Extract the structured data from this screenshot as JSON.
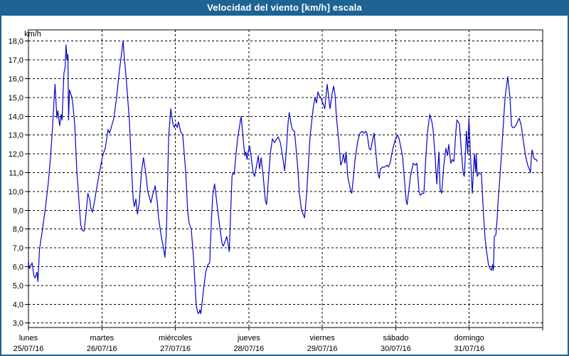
{
  "window": {
    "title": "Velocidad del viento [km/h] escala"
  },
  "colors": {
    "title_bar": "#1d6394",
    "border": "#1d6394",
    "line": "#0404c8",
    "background": "#ffffff",
    "grid": "#000000",
    "text": "#000000"
  },
  "chart_data": {
    "type": "line",
    "title": "Velocidad del viento [km/h] escala",
    "ylabel": "km/h",
    "xlabel": "",
    "ylim": [
      3,
      18
    ],
    "grid": true,
    "legend": "none",
    "ytick_values": [
      18,
      17,
      16,
      15,
      14,
      13,
      12,
      11,
      10,
      9,
      8,
      7,
      6,
      5,
      4,
      3
    ],
    "ytick_labels": [
      "18,0",
      "17,0",
      "16,0",
      "15,0",
      "14,0",
      "13,0",
      "12,0",
      "11,0",
      "10,0",
      "9,0",
      "8,0",
      "7,0",
      "6,0",
      "5,0",
      "4,0",
      "3,0"
    ],
    "days": [
      {
        "name": "lunes",
        "date": "25/07/16"
      },
      {
        "name": "martes",
        "date": "26/07/16"
      },
      {
        "name": "miércoles",
        "date": "27/07/16"
      },
      {
        "name": "jueves",
        "date": "28/07/16"
      },
      {
        "name": "viernes",
        "date": "29/07/16"
      },
      {
        "name": "sábado",
        "date": "30/07/16"
      },
      {
        "name": "domingo",
        "date": "31/07/16"
      }
    ],
    "hours_total": 168,
    "series": [
      {
        "name": "Velocidad del viento",
        "unit": "km/h",
        "x_unit": "hours since 25/07/16 00:00",
        "points": [
          [
            0,
            6.3
          ],
          [
            0.3,
            5.9
          ],
          [
            1.2,
            6.2
          ],
          [
            1.8,
            5.5
          ],
          [
            2.2,
            5.4
          ],
          [
            2.8,
            5.7
          ],
          [
            3.1,
            5.2
          ],
          [
            3.6,
            6.9
          ],
          [
            4.6,
            8.0
          ],
          [
            5.6,
            9.2
          ],
          [
            6.5,
            10.5
          ],
          [
            7.2,
            11.8
          ],
          [
            7.9,
            13.5
          ],
          [
            8.4,
            15.0
          ],
          [
            8.7,
            15.7
          ],
          [
            9.3,
            13.9
          ],
          [
            9.6,
            14.3
          ],
          [
            10.2,
            13.5
          ],
          [
            10.7,
            14.1
          ],
          [
            11.0,
            13.8
          ],
          [
            11.3,
            15.2
          ],
          [
            11.6,
            16.3
          ],
          [
            12.0,
            16.6
          ],
          [
            12.3,
            17.8
          ],
          [
            12.6,
            17.0
          ],
          [
            12.9,
            17.3
          ],
          [
            13.1,
            13.8
          ],
          [
            13.4,
            15.4
          ],
          [
            14.0,
            15.1
          ],
          [
            14.4,
            14.8
          ],
          [
            15.1,
            13.6
          ],
          [
            15.8,
            11.1
          ],
          [
            16.3,
            10.0
          ],
          [
            16.7,
            9.0
          ],
          [
            17.1,
            8.2
          ],
          [
            17.7,
            7.9
          ],
          [
            18.2,
            7.9
          ],
          [
            18.8,
            8.8
          ],
          [
            19.4,
            9.9
          ],
          [
            20.0,
            9.6
          ],
          [
            20.4,
            9.1
          ],
          [
            20.9,
            8.9
          ],
          [
            21.6,
            9.5
          ],
          [
            22.1,
            10.0
          ],
          [
            23.2,
            11.0
          ],
          [
            24.0,
            11.7
          ],
          [
            24.4,
            12.0
          ],
          [
            25.1,
            12.3
          ],
          [
            26.0,
            13.3
          ],
          [
            26.5,
            13.1
          ],
          [
            27.2,
            13.5
          ],
          [
            27.9,
            13.9
          ],
          [
            28.8,
            15.0
          ],
          [
            29.7,
            16.4
          ],
          [
            30.4,
            17.3
          ],
          [
            30.9,
            18.0
          ],
          [
            31.4,
            17.0
          ],
          [
            32.1,
            15.7
          ],
          [
            33.0,
            13.7
          ],
          [
            33.7,
            11.2
          ],
          [
            34.2,
            9.6
          ],
          [
            34.6,
            9.2
          ],
          [
            35.1,
            9.6
          ],
          [
            35.6,
            8.8
          ],
          [
            36.2,
            9.4
          ],
          [
            36.9,
            11.0
          ],
          [
            37.6,
            11.8
          ],
          [
            38.3,
            11.0
          ],
          [
            39.0,
            10.0
          ],
          [
            40.0,
            9.4
          ],
          [
            40.7,
            9.9
          ],
          [
            41.4,
            10.3
          ],
          [
            42.1,
            9.4
          ],
          [
            42.5,
            8.6
          ],
          [
            43.4,
            7.6
          ],
          [
            44.1,
            7.0
          ],
          [
            44.6,
            6.5
          ],
          [
            45.1,
            8.0
          ],
          [
            45.8,
            12.9
          ],
          [
            46.5,
            14.4
          ],
          [
            47.2,
            13.6
          ],
          [
            47.6,
            13.4
          ],
          [
            48.1,
            13.6
          ],
          [
            48.6,
            13.4
          ],
          [
            49.0,
            13.7
          ],
          [
            49.7,
            13.2
          ],
          [
            50.4,
            13.0
          ],
          [
            51.4,
            11.0
          ],
          [
            52.0,
            9.0
          ],
          [
            52.5,
            8.3
          ],
          [
            53.2,
            8.0
          ],
          [
            53.9,
            6.5
          ],
          [
            54.8,
            4.0
          ],
          [
            55.2,
            3.6
          ],
          [
            55.6,
            3.5
          ],
          [
            56.0,
            3.7
          ],
          [
            56.3,
            3.5
          ],
          [
            56.6,
            3.9
          ],
          [
            57.2,
            4.8
          ],
          [
            57.9,
            5.7
          ],
          [
            58.6,
            6.1
          ],
          [
            59.2,
            6.2
          ],
          [
            59.8,
            8.6
          ],
          [
            60.2,
            9.8
          ],
          [
            60.8,
            10.4
          ],
          [
            61.7,
            9.2
          ],
          [
            62.5,
            8.1
          ],
          [
            63.3,
            7.2
          ],
          [
            63.7,
            7.1
          ],
          [
            64.8,
            7.6
          ],
          [
            65.6,
            6.8
          ],
          [
            66.5,
            10.8
          ],
          [
            66.8,
            11.0
          ],
          [
            67.2,
            10.9
          ],
          [
            67.8,
            12.0
          ],
          [
            68.4,
            12.9
          ],
          [
            69.0,
            13.5
          ],
          [
            69.5,
            14.0
          ],
          [
            70.2,
            12.7
          ],
          [
            70.7,
            11.9
          ],
          [
            71.0,
            12.1
          ],
          [
            71.4,
            11.7
          ],
          [
            72.0,
            12.3
          ],
          [
            72.3,
            12.4
          ],
          [
            73.4,
            11.0
          ],
          [
            73.9,
            10.8
          ],
          [
            75.1,
            11.9
          ],
          [
            75.5,
            11.2
          ],
          [
            76.0,
            11.8
          ],
          [
            76.7,
            10.8
          ],
          [
            77.4,
            9.5
          ],
          [
            77.8,
            9.3
          ],
          [
            79.0,
            12.0
          ],
          [
            79.7,
            12.8
          ],
          [
            80.4,
            12.6
          ],
          [
            81.1,
            12.8
          ],
          [
            81.6,
            12.9
          ],
          [
            82.3,
            12.6
          ],
          [
            83.0,
            11.9
          ],
          [
            83.7,
            11.1
          ],
          [
            84.4,
            12.5
          ],
          [
            84.8,
            13.6
          ],
          [
            85.2,
            14.2
          ],
          [
            85.8,
            13.6
          ],
          [
            86.2,
            13.3
          ],
          [
            86.9,
            13.2
          ],
          [
            87.6,
            12.0
          ],
          [
            88.1,
            11.0
          ],
          [
            88.5,
            9.9
          ],
          [
            89.2,
            9.0
          ],
          [
            89.7,
            8.8
          ],
          [
            90.2,
            8.6
          ],
          [
            90.9,
            9.9
          ],
          [
            91.3,
            11.0
          ],
          [
            92.0,
            12.9
          ],
          [
            93.0,
            14.4
          ],
          [
            93.6,
            15.0
          ],
          [
            94.1,
            14.7
          ],
          [
            94.6,
            15.3
          ],
          [
            95.0,
            15.1
          ],
          [
            95.5,
            15.0
          ],
          [
            96.4,
            14.6
          ],
          [
            96.8,
            14.4
          ],
          [
            97.6,
            15.7
          ],
          [
            98.1,
            15.0
          ],
          [
            98.5,
            14.4
          ],
          [
            99.2,
            15.2
          ],
          [
            99.7,
            15.6
          ],
          [
            100.2,
            15.1
          ],
          [
            100.6,
            14.0
          ],
          [
            101.3,
            12.8
          ],
          [
            102.0,
            11.4
          ],
          [
            102.5,
            11.6
          ],
          [
            102.9,
            12.0
          ],
          [
            103.4,
            11.5
          ],
          [
            103.8,
            12.1
          ],
          [
            104.3,
            10.8
          ],
          [
            105.3,
            10.0
          ],
          [
            105.6,
            9.9
          ],
          [
            106.2,
            10.8
          ],
          [
            106.7,
            11.7
          ],
          [
            107.6,
            12.7
          ],
          [
            108.3,
            13.1
          ],
          [
            109.0,
            13.2
          ],
          [
            109.7,
            13.1
          ],
          [
            110.1,
            13.2
          ],
          [
            110.6,
            13.1
          ],
          [
            111.3,
            12.3
          ],
          [
            111.8,
            12.2
          ],
          [
            112.5,
            12.8
          ],
          [
            112.9,
            13.1
          ],
          [
            113.6,
            11.9
          ],
          [
            114.1,
            11.0
          ],
          [
            114.6,
            10.7
          ],
          [
            115.0,
            11.2
          ],
          [
            115.7,
            11.3
          ],
          [
            116.4,
            11.3
          ],
          [
            117.1,
            11.4
          ],
          [
            117.6,
            11.3
          ],
          [
            118.3,
            11.6
          ],
          [
            118.7,
            12.0
          ],
          [
            119.4,
            12.5
          ],
          [
            120.0,
            12.8
          ],
          [
            120.6,
            13.0
          ],
          [
            121.1,
            12.8
          ],
          [
            122.2,
            11.9
          ],
          [
            122.9,
            10.5
          ],
          [
            123.4,
            9.5
          ],
          [
            123.7,
            9.3
          ],
          [
            124.8,
            10.8
          ],
          [
            125.7,
            11.5
          ],
          [
            126.4,
            11.4
          ],
          [
            126.9,
            11.5
          ],
          [
            127.6,
            10.0
          ],
          [
            128.0,
            9.8
          ],
          [
            128.7,
            9.9
          ],
          [
            129.2,
            9.9
          ],
          [
            129.9,
            12.0
          ],
          [
            130.4,
            13.2
          ],
          [
            131.1,
            14.1
          ],
          [
            131.8,
            13.7
          ],
          [
            132.2,
            13.3
          ],
          [
            132.9,
            11.8
          ],
          [
            133.4,
            10.4
          ],
          [
            134.1,
            12.1
          ],
          [
            134.5,
            10.1
          ],
          [
            135.0,
            9.9
          ],
          [
            135.7,
            11.4
          ],
          [
            136.4,
            12.3
          ],
          [
            136.9,
            11.9
          ],
          [
            137.3,
            12.5
          ],
          [
            138.0,
            11.5
          ],
          [
            138.5,
            11.7
          ],
          [
            139.0,
            11.6
          ],
          [
            139.7,
            13.3
          ],
          [
            140.0,
            13.8
          ],
          [
            140.8,
            13.6
          ],
          [
            141.5,
            12.0
          ],
          [
            142.0,
            11.0
          ],
          [
            142.4,
            10.8
          ],
          [
            143.1,
            13.2
          ],
          [
            143.5,
            12.0
          ],
          [
            143.9,
            13.9
          ],
          [
            144.4,
            12.0
          ],
          [
            145.0,
            9.9
          ],
          [
            145.7,
            12.0
          ],
          [
            146.1,
            11.0
          ],
          [
            146.3,
            12.0
          ],
          [
            146.6,
            10.8
          ],
          [
            147.3,
            11.0
          ],
          [
            148.0,
            10.9
          ],
          [
            148.7,
            8.7
          ],
          [
            149.2,
            7.5
          ],
          [
            149.6,
            6.9
          ],
          [
            150.3,
            6.1
          ],
          [
            150.8,
            5.9
          ],
          [
            151.3,
            5.8
          ],
          [
            151.6,
            6.1
          ],
          [
            151.9,
            5.8
          ],
          [
            152.2,
            7.6
          ],
          [
            152.7,
            7.7
          ],
          [
            153.1,
            8.5
          ],
          [
            153.4,
            9.4
          ],
          [
            154.3,
            11.4
          ],
          [
            155.0,
            13.2
          ],
          [
            155.7,
            15.0
          ],
          [
            156.6,
            16.1
          ],
          [
            157.3,
            15.0
          ],
          [
            157.8,
            13.5
          ],
          [
            158.2,
            13.4
          ],
          [
            158.7,
            13.4
          ],
          [
            159.2,
            13.5
          ],
          [
            160.3,
            13.9
          ],
          [
            161.0,
            13.5
          ],
          [
            161.5,
            12.9
          ],
          [
            162.4,
            11.9
          ],
          [
            163.1,
            11.4
          ],
          [
            163.6,
            11.2
          ],
          [
            164.0,
            11.0
          ],
          [
            164.4,
            12.1
          ],
          [
            164.6,
            12.2
          ],
          [
            165.0,
            11.8
          ],
          [
            165.5,
            11.7
          ],
          [
            165.9,
            11.7
          ],
          [
            166.2,
            11.6
          ]
        ]
      }
    ]
  }
}
